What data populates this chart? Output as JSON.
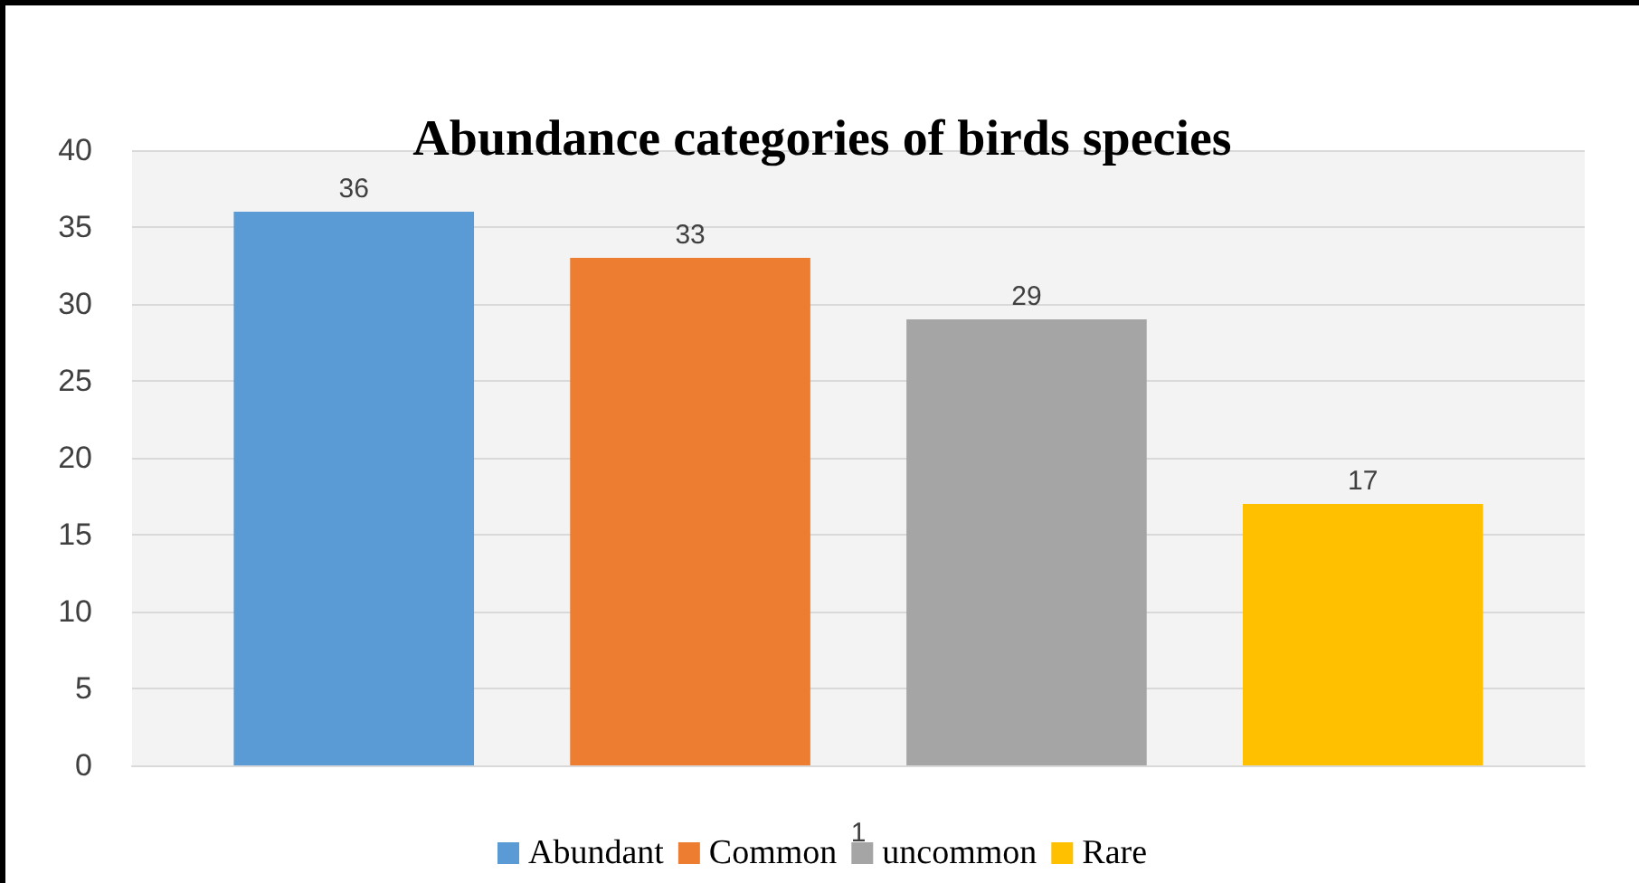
{
  "chart_data": {
    "type": "bar",
    "title": "Abundance categories of birds species",
    "categories": [
      "1"
    ],
    "series": [
      {
        "name": "Abundant",
        "color": "#5b9bd5",
        "values": [
          36
        ]
      },
      {
        "name": "Common",
        "color": "#ed7d31",
        "values": [
          33
        ]
      },
      {
        "name": "uncommon",
        "color": "#a5a5a5",
        "values": [
          29
        ]
      },
      {
        "name": "Rare",
        "color": "#ffc000",
        "values": [
          17
        ]
      }
    ],
    "ylim": [
      0,
      40
    ],
    "yticks": [
      0,
      5,
      10,
      15,
      20,
      25,
      30,
      35,
      40
    ],
    "grid": "y",
    "legend": "bottom",
    "data_labels": true
  }
}
